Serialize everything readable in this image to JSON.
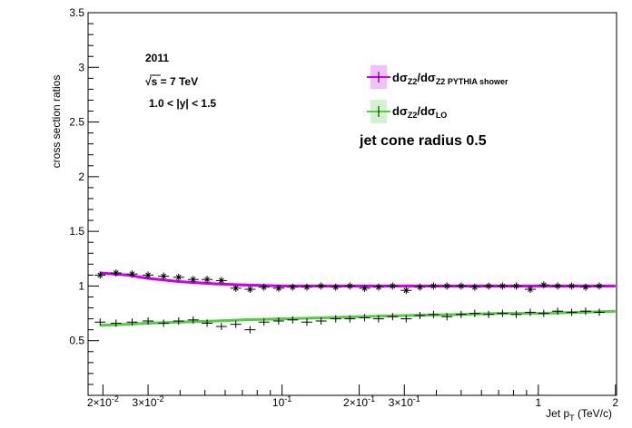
{
  "chart_data": {
    "type": "scatter",
    "title": "",
    "xlabel_main": "Jet p",
    "xlabel_sub": "T",
    "xlabel_unit": " (TeV/c)",
    "ylabel": "cross section ratios",
    "xscale": "log",
    "xlim": [
      0.0175,
      2.02
    ],
    "ylim": [
      0,
      3.5
    ],
    "yticks": [
      "0.5",
      "1",
      "1.5",
      "2",
      "2.5",
      "3",
      "3.5"
    ],
    "yticks_values": [
      0.5,
      1,
      1.5,
      2,
      2.5,
      3,
      3.5
    ],
    "xticks": [
      {
        "value": 0.02,
        "base": "2×10",
        "exp": "-2"
      },
      {
        "value": 0.03,
        "base": "3×10",
        "exp": "-2"
      },
      {
        "value": 0.1,
        "base": "10",
        "exp": "-1"
      },
      {
        "value": 0.2,
        "base": "2×10",
        "exp": "-1"
      },
      {
        "value": 0.3,
        "base": "3×10",
        "exp": "-1"
      },
      {
        "value": 1,
        "base": "1",
        "exp": ""
      },
      {
        "value": 2,
        "base": "2",
        "exp": ""
      }
    ],
    "annotations": {
      "year": "2011",
      "energy_sqrt": "√s",
      "energy_rest": " = 7 TeV",
      "rapidity": "1.0 < |y| < 1.5",
      "cone": "jet cone radius 0.5"
    },
    "legend": {
      "placement": "top-right",
      "entries": [
        {
          "main": "dσ",
          "sub1": "Z2",
          "mid": "/dσ",
          "sub2": "Z2 PYTHIA shower",
          "color": "#cc00ee"
        },
        {
          "main": "dσ",
          "sub1": "Z2",
          "mid": "/dσ",
          "sub2": "LO",
          "color": "#55cc44"
        }
      ]
    },
    "series": [
      {
        "color": "#cc00ee",
        "band": {
          "x": [
            0.0195,
            0.025,
            0.03,
            0.04,
            0.055,
            0.07,
            0.1,
            0.15,
            0.2,
            0.3,
            0.5,
            0.7,
            1.0,
            1.5,
            2.0
          ],
          "y": [
            1.12,
            1.1,
            1.07,
            1.04,
            1.02,
            1.01,
            1.0,
            1.0,
            1.0,
            1.0,
            1.0,
            1.0,
            1.0,
            1.0,
            1.0
          ]
        },
        "points": {
          "x": [
            0.0195,
            0.0225,
            0.026,
            0.03,
            0.0345,
            0.0395,
            0.045,
            0.051,
            0.058,
            0.066,
            0.075,
            0.085,
            0.097,
            0.11,
            0.125,
            0.142,
            0.162,
            0.184,
            0.21,
            0.238,
            0.27,
            0.305,
            0.345,
            0.39,
            0.44,
            0.5,
            0.565,
            0.64,
            0.725,
            0.82,
            0.93,
            1.05,
            1.19,
            1.35,
            1.53,
            1.73
          ],
          "y": [
            1.1,
            1.12,
            1.11,
            1.1,
            1.09,
            1.08,
            1.06,
            1.06,
            1.05,
            0.98,
            0.97,
            0.99,
            0.98,
            0.99,
            0.99,
            1.0,
            0.99,
            1.0,
            0.98,
            0.99,
            1.0,
            0.96,
            0.99,
            1.0,
            1.0,
            1.0,
            0.99,
            1.0,
            1.0,
            1.0,
            0.97,
            1.01,
            1.0,
            1.0,
            0.99,
            1.0
          ]
        }
      },
      {
        "color": "#55cc44",
        "band": {
          "x": [
            0.0195,
            0.025,
            0.03,
            0.04,
            0.055,
            0.07,
            0.1,
            0.15,
            0.2,
            0.3,
            0.5,
            0.7,
            1.0,
            1.5,
            2.0
          ],
          "y": [
            0.64,
            0.65,
            0.66,
            0.67,
            0.68,
            0.69,
            0.7,
            0.71,
            0.72,
            0.73,
            0.74,
            0.75,
            0.75,
            0.76,
            0.77
          ]
        },
        "points": {
          "x": [
            0.0195,
            0.0225,
            0.026,
            0.03,
            0.0345,
            0.0395,
            0.045,
            0.051,
            0.058,
            0.066,
            0.075,
            0.085,
            0.097,
            0.11,
            0.125,
            0.142,
            0.162,
            0.184,
            0.21,
            0.238,
            0.27,
            0.305,
            0.345,
            0.39,
            0.44,
            0.5,
            0.565,
            0.64,
            0.725,
            0.82,
            0.93,
            1.05,
            1.19,
            1.35,
            1.53,
            1.73
          ],
          "y": [
            0.67,
            0.66,
            0.67,
            0.68,
            0.66,
            0.68,
            0.69,
            0.66,
            0.63,
            0.65,
            0.6,
            0.67,
            0.68,
            0.69,
            0.67,
            0.68,
            0.7,
            0.7,
            0.71,
            0.7,
            0.72,
            0.7,
            0.73,
            0.74,
            0.72,
            0.74,
            0.75,
            0.74,
            0.75,
            0.74,
            0.76,
            0.75,
            0.77,
            0.76,
            0.77,
            0.76
          ]
        }
      }
    ]
  }
}
